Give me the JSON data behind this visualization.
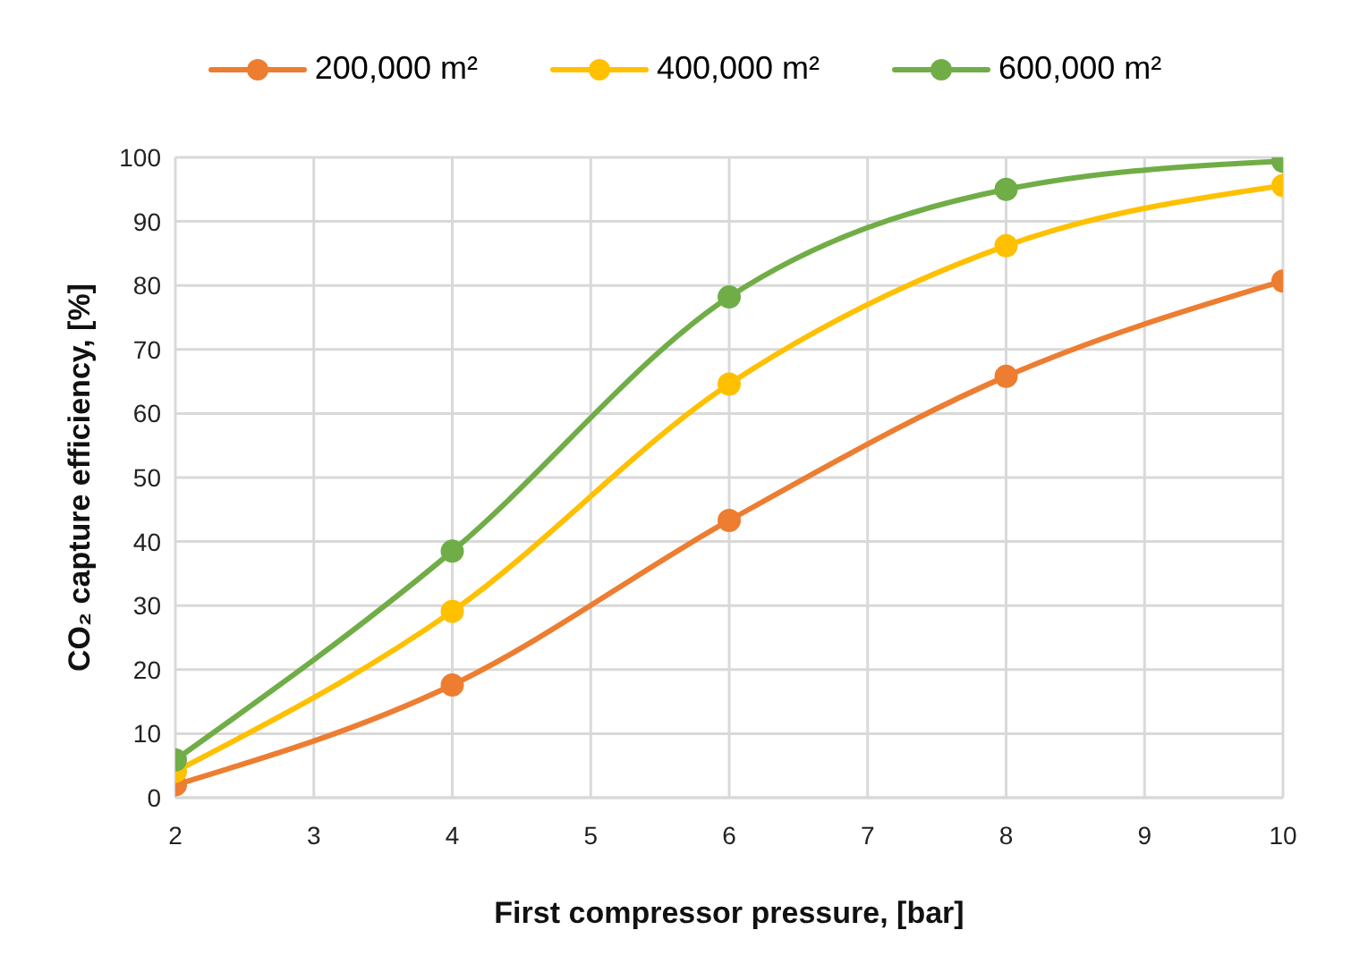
{
  "chart_data": {
    "type": "line",
    "xlabel": "First compressor pressure, [bar]",
    "ylabel": "CO₂ capture efficiency, [%]",
    "x": [
      2,
      4,
      6,
      8,
      10
    ],
    "series": [
      {
        "name": "200,000 m²",
        "color": "#ed7d31",
        "values": [
          2,
          17.6,
          43.3,
          65.8,
          80.7
        ]
      },
      {
        "name": "400,000 m²",
        "color": "#ffc000",
        "values": [
          4.1,
          29.1,
          64.6,
          86.2,
          95.6
        ]
      },
      {
        "name": "600,000 m²",
        "color": "#70ad47",
        "values": [
          5.9,
          38.5,
          78.2,
          95,
          99.4
        ]
      }
    ],
    "xlim": [
      2,
      10
    ],
    "xticks": [
      2,
      3,
      4,
      5,
      6,
      7,
      8,
      9,
      10
    ],
    "ylim": [
      0,
      100
    ],
    "yticks": [
      0,
      10,
      20,
      30,
      40,
      50,
      60,
      70,
      80,
      90,
      100
    ],
    "grid": true,
    "legend": "top",
    "marker": "circle",
    "line_style": "solid"
  }
}
